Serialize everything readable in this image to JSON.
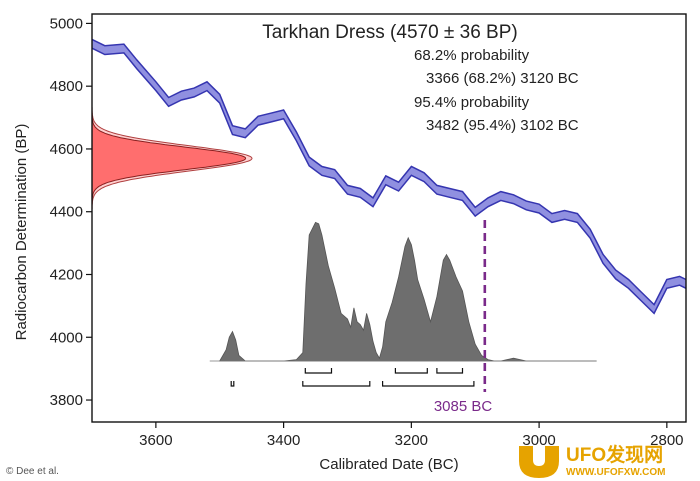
{
  "chart_data": {
    "type": "line",
    "title": "Tarkhan Dress (4570 ± 36 BP)",
    "xlabel": "Calibrated Date (BC)",
    "ylabel": "Radiocarbon Determination (BP)",
    "xlim": [
      3700,
      2770
    ],
    "ylim": [
      3730,
      5030
    ],
    "x_ticks": [
      3600,
      3400,
      3200,
      3000,
      2800
    ],
    "y_ticks": [
      3800,
      4000,
      4200,
      4400,
      4600,
      4800,
      5000
    ],
    "annotations": [
      {
        "id": "p68_title",
        "text": "68.2% probability"
      },
      {
        "id": "p68_range",
        "text": "3366 (68.2%) 3120 BC"
      },
      {
        "id": "p95_title",
        "text": "95.4% probability"
      },
      {
        "id": "p95_range",
        "text": "3482 (95.4%) 3102 BC"
      },
      {
        "id": "marker",
        "text": "3085 BC",
        "x": 3085
      }
    ],
    "credit": "© Dee et al.",
    "calibration_curve": {
      "color": "#3535b0",
      "fill": "#9090e0",
      "band": 14,
      "x": [
        3700,
        3680,
        3650,
        3630,
        3600,
        3580,
        3560,
        3540,
        3520,
        3500,
        3480,
        3460,
        3440,
        3420,
        3400,
        3380,
        3360,
        3340,
        3320,
        3300,
        3280,
        3260,
        3240,
        3220,
        3200,
        3180,
        3160,
        3140,
        3120,
        3100,
        3080,
        3060,
        3040,
        3020,
        3000,
        2980,
        2960,
        2940,
        2920,
        2900,
        2880,
        2860,
        2840,
        2820,
        2800,
        2780,
        2770
      ],
      "y": [
        4935,
        4915,
        4920,
        4870,
        4800,
        4750,
        4770,
        4780,
        4800,
        4760,
        4660,
        4650,
        4690,
        4700,
        4710,
        4640,
        4560,
        4530,
        4520,
        4470,
        4460,
        4430,
        4500,
        4480,
        4530,
        4510,
        4470,
        4460,
        4450,
        4400,
        4430,
        4450,
        4440,
        4420,
        4410,
        4380,
        4390,
        4380,
        4330,
        4250,
        4200,
        4170,
        4130,
        4090,
        4170,
        4180,
        4170
      ]
    },
    "probability_distribution": {
      "color": "#6e6e6e",
      "x": [
        3500,
        3490,
        3485,
        3480,
        3475,
        3470,
        3460,
        3440,
        3420,
        3400,
        3380,
        3370,
        3365,
        3360,
        3350,
        3345,
        3340,
        3330,
        3320,
        3310,
        3300,
        3295,
        3290,
        3285,
        3280,
        3275,
        3270,
        3265,
        3260,
        3255,
        3250,
        3245,
        3240,
        3230,
        3220,
        3210,
        3205,
        3200,
        3195,
        3190,
        3180,
        3170,
        3160,
        3150,
        3145,
        3140,
        3130,
        3120,
        3110,
        3100,
        3090,
        3080,
        3070,
        3060,
        3040,
        3020,
        3000,
        2980,
        2960,
        2940,
        2920,
        2910
      ],
      "y": [
        0.0,
        0.08,
        0.17,
        0.21,
        0.15,
        0.04,
        0.0,
        0.0,
        0.0,
        0.0,
        0.01,
        0.06,
        0.55,
        0.9,
        0.99,
        0.98,
        0.9,
        0.68,
        0.52,
        0.34,
        0.3,
        0.24,
        0.38,
        0.28,
        0.26,
        0.22,
        0.34,
        0.26,
        0.14,
        0.06,
        0.02,
        0.1,
        0.28,
        0.42,
        0.6,
        0.82,
        0.88,
        0.83,
        0.72,
        0.58,
        0.44,
        0.28,
        0.46,
        0.72,
        0.76,
        0.72,
        0.6,
        0.5,
        0.28,
        0.12,
        0.04,
        0.01,
        0.0,
        0.0,
        0.02,
        0.0,
        0.0,
        0.0,
        0.0,
        0.0,
        0.0,
        0.0
      ]
    },
    "prob_68_ranges": [
      [
        3366,
        3325
      ],
      [
        3225,
        3175
      ],
      [
        3160,
        3120
      ]
    ],
    "prob_95_ranges": [
      [
        3482,
        3478
      ],
      [
        3370,
        3265
      ],
      [
        3245,
        3102
      ]
    ],
    "measurement": {
      "mean": 4570,
      "sd": 36,
      "color": "#ff6e6e"
    }
  },
  "watermark": {
    "text_a": "UFO发现网",
    "text_b": "WWW.UFOFXW.COM"
  }
}
